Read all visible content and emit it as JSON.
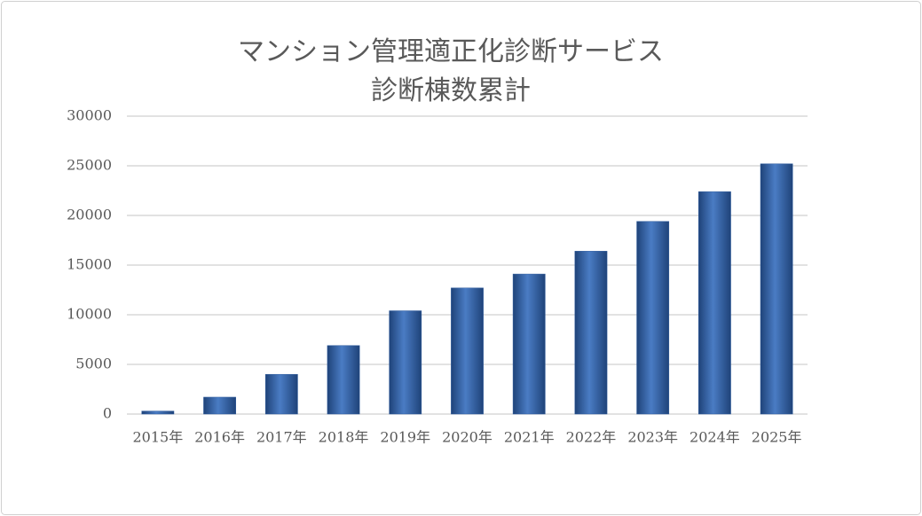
{
  "chart_data": {
    "type": "bar",
    "title": [
      "マンション管理適正化診断サービス",
      "診断棟数累計"
    ],
    "categories": [
      "2015年",
      "2016年",
      "2017年",
      "2018年",
      "2019年",
      "2020年",
      "2021年",
      "2022年",
      "2023年",
      "2024年",
      "2025年"
    ],
    "values": [
      300,
      1700,
      4000,
      6900,
      10400,
      12700,
      14100,
      16400,
      19400,
      22400,
      25200
    ],
    "color": "#2e5c9e",
    "ylim": [
      0,
      30000
    ],
    "yticks": [
      0,
      5000,
      10000,
      15000,
      20000,
      25000,
      30000
    ],
    "grid": true
  }
}
